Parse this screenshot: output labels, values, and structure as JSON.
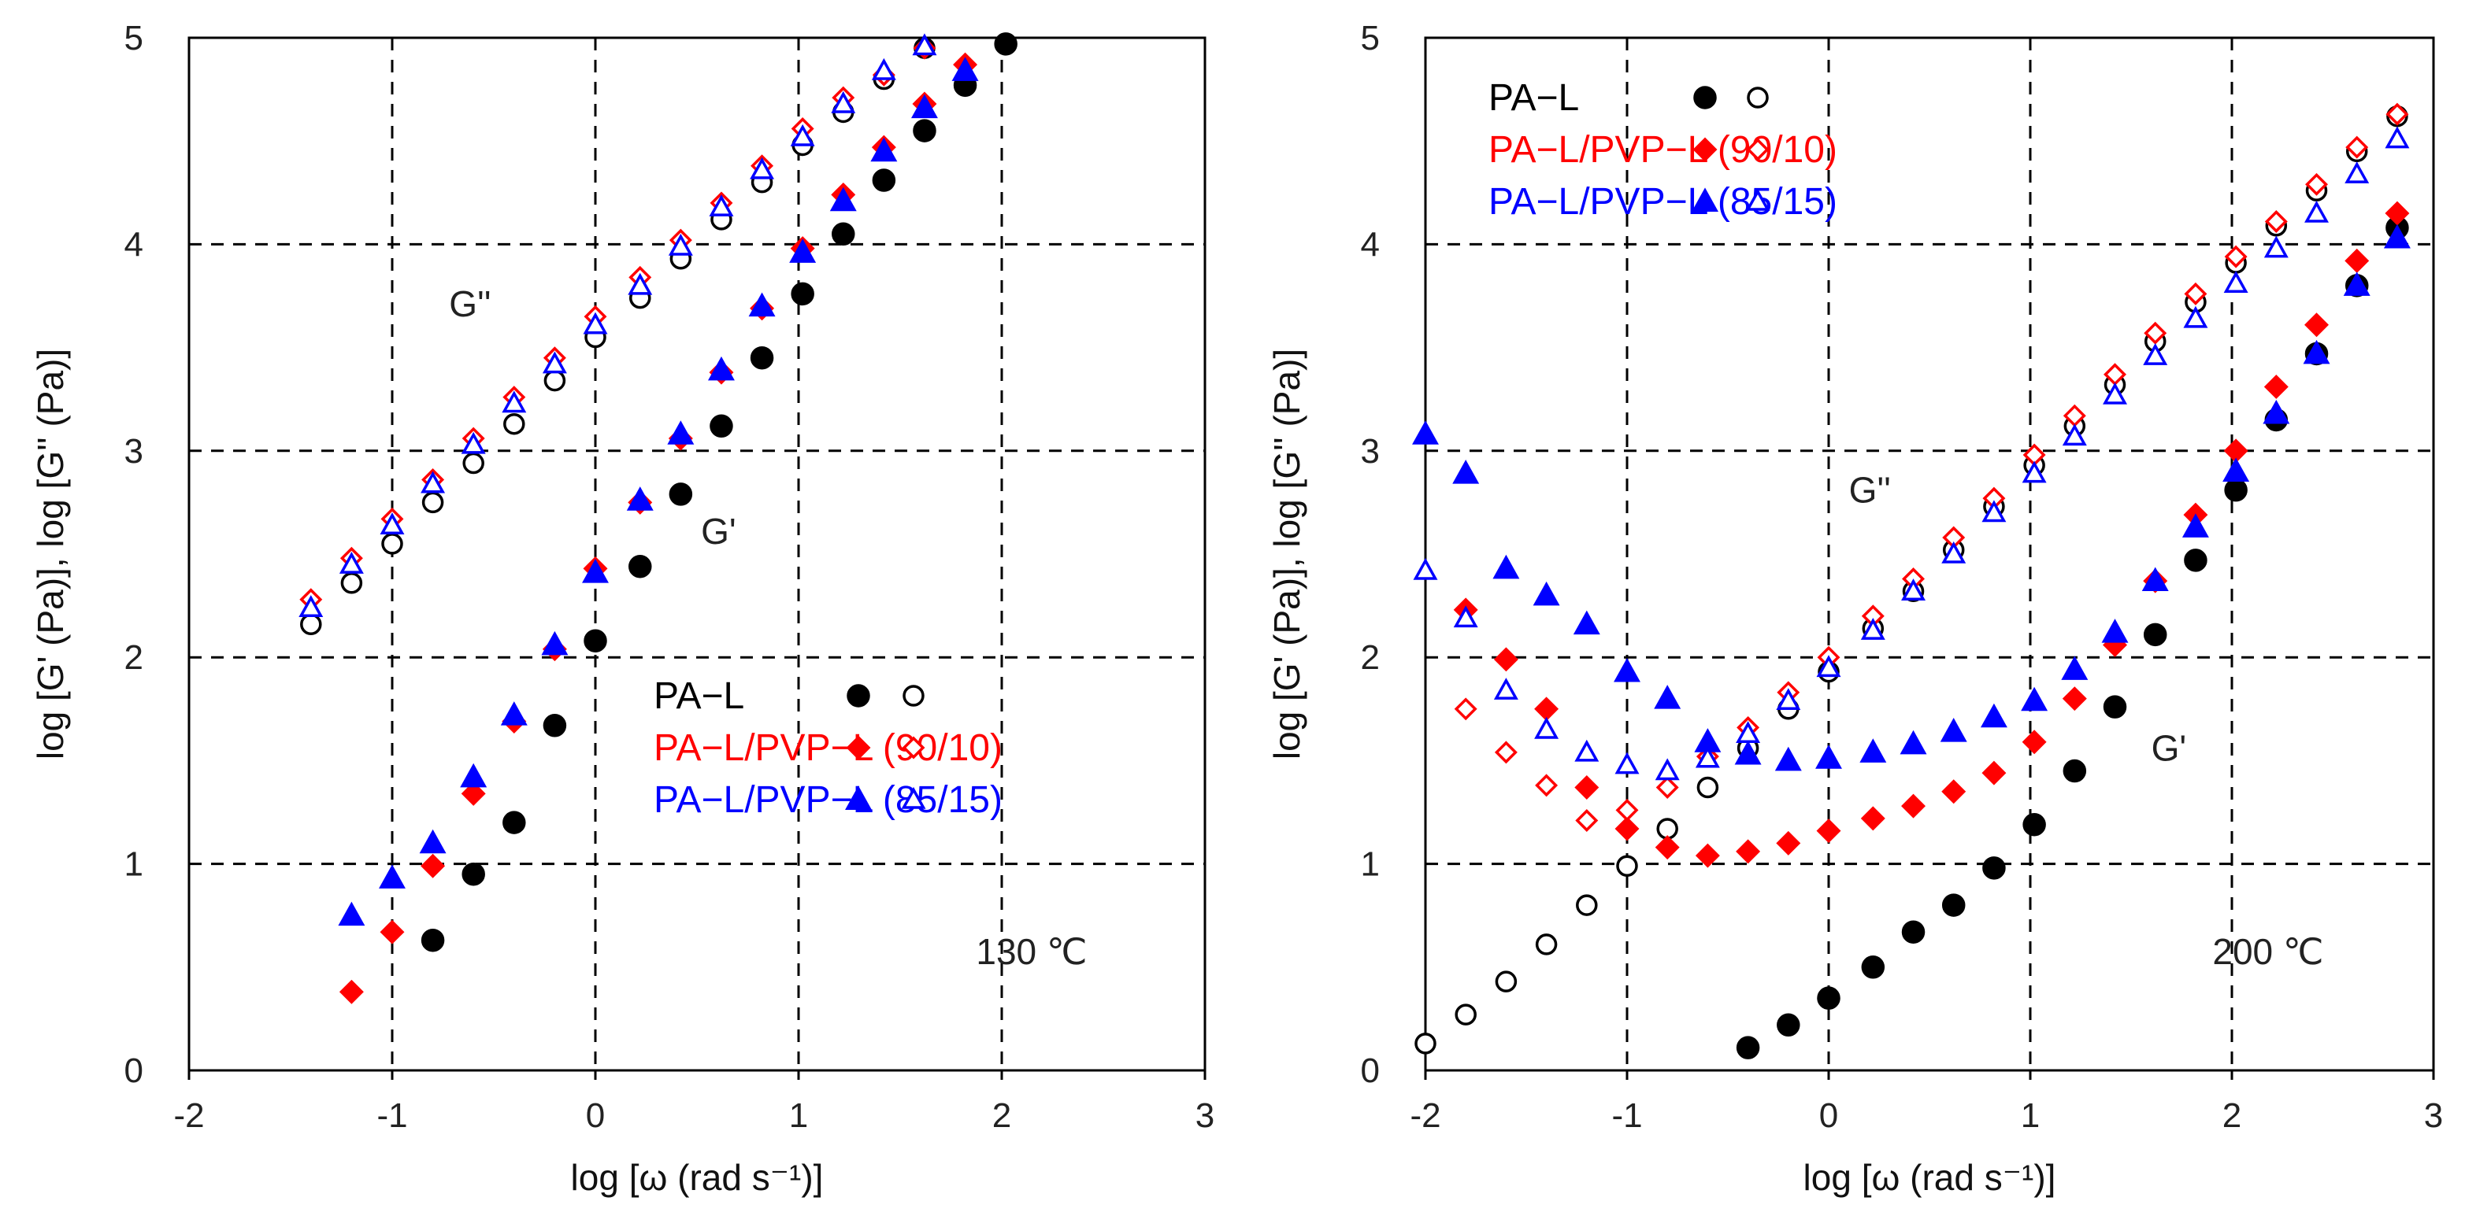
{
  "colors": {
    "pa_l": "#000000",
    "pvp_90_10": "#ff0000",
    "pvp_85_15": "#0000ff",
    "grid": "#000000",
    "axis": "#000000"
  },
  "chart_data": [
    {
      "type": "scatter",
      "panel": "left",
      "xlabel": "log [ω (rad s⁻¹)]",
      "ylabel": "log [G' (Pa)], log [G'' (Pa)]",
      "xlim": [
        -2,
        3
      ],
      "ylim": [
        0,
        5
      ],
      "x_ticks": [
        "-2",
        "-1",
        "0",
        "1",
        "2",
        "3"
      ],
      "y_ticks": [
        "0",
        "1",
        "2",
        "3",
        "4",
        "5"
      ],
      "temperature_label": "130 ℃",
      "annotations": [
        {
          "text": "G''",
          "x": -0.72,
          "y": 3.65
        },
        {
          "text": "G'",
          "x": 0.52,
          "y": 2.55
        }
      ],
      "legend": [
        {
          "label": "PA−L",
          "series": "pa_l"
        },
        {
          "label": "PA−L/PVP−L (90/10)",
          "series": "pvp_90_10"
        },
        {
          "label": "PA−L/PVP−L (85/15)",
          "series": "pvp_85_15"
        }
      ],
      "series": [
        {
          "id": "pa_l_Gp",
          "name": "PA−L G'",
          "color": "pa_l",
          "marker": "circle",
          "filled": true,
          "x": [
            -0.8,
            -0.6,
            -0.4,
            -0.2,
            0.0,
            0.22,
            0.42,
            0.62,
            0.82,
            1.02,
            1.22,
            1.42,
            1.62,
            1.82,
            2.02
          ],
          "y": [
            0.63,
            0.95,
            1.2,
            1.67,
            2.08,
            2.44,
            2.79,
            3.12,
            3.45,
            3.76,
            4.05,
            4.31,
            4.55,
            4.77,
            4.97
          ]
        },
        {
          "id": "pa_l_Gpp",
          "name": "PA−L G''",
          "color": "pa_l",
          "marker": "circle",
          "filled": false,
          "x": [
            -1.4,
            -1.2,
            -1.0,
            -0.8,
            -0.6,
            -0.4,
            -0.2,
            0.0,
            0.22,
            0.42,
            0.62,
            0.82,
            1.02,
            1.22,
            1.42,
            1.62
          ],
          "y": [
            2.16,
            2.36,
            2.55,
            2.75,
            2.94,
            3.13,
            3.34,
            3.55,
            3.74,
            3.93,
            4.12,
            4.3,
            4.48,
            4.64,
            4.8,
            4.95
          ]
        },
        {
          "id": "pvp_90_Gp",
          "name": "PA−L/PVP−L (90/10) G'",
          "color": "pvp_90_10",
          "marker": "diamond",
          "filled": true,
          "x": [
            -1.2,
            -1.0,
            -0.8,
            -0.6,
            -0.4,
            -0.2,
            0.0,
            0.22,
            0.42,
            0.62,
            0.82,
            1.02,
            1.22,
            1.42,
            1.62,
            1.82
          ],
          "y": [
            0.38,
            0.67,
            0.99,
            1.34,
            1.69,
            2.04,
            2.43,
            2.75,
            3.06,
            3.38,
            3.69,
            3.98,
            4.24,
            4.47,
            4.68,
            4.87
          ]
        },
        {
          "id": "pvp_90_Gpp",
          "name": "PA−L/PVP−L (90/10) G''",
          "color": "pvp_90_10",
          "marker": "diamond",
          "filled": false,
          "x": [
            -1.4,
            -1.2,
            -1.0,
            -0.8,
            -0.6,
            -0.4,
            -0.2,
            0.0,
            0.22,
            0.42,
            0.62,
            0.82,
            1.02,
            1.22,
            1.42,
            1.62
          ],
          "y": [
            2.28,
            2.48,
            2.67,
            2.86,
            3.06,
            3.26,
            3.45,
            3.65,
            3.84,
            4.02,
            4.2,
            4.38,
            4.56,
            4.71,
            4.82,
            4.95
          ]
        },
        {
          "id": "pvp_85_Gp",
          "name": "PA−L/PVP−L (85/15) G'",
          "color": "pvp_85_15",
          "marker": "triangle",
          "filled": true,
          "x": [
            -1.2,
            -1.0,
            -0.8,
            -0.6,
            -0.4,
            -0.2,
            0.0,
            0.22,
            0.42,
            0.62,
            0.82,
            1.02,
            1.22,
            1.42,
            1.62,
            1.82
          ],
          "y": [
            0.75,
            0.93,
            1.1,
            1.42,
            1.72,
            2.06,
            2.41,
            2.76,
            3.08,
            3.39,
            3.7,
            3.96,
            4.21,
            4.45,
            4.66,
            4.84
          ]
        },
        {
          "id": "pvp_85_Gpp",
          "name": "PA−L/PVP−L (85/15) G''",
          "color": "pvp_85_15",
          "marker": "triangle",
          "filled": false,
          "x": [
            -1.4,
            -1.2,
            -1.0,
            -0.8,
            -0.6,
            -0.4,
            -0.2,
            0.0,
            0.22,
            0.42,
            0.62,
            0.82,
            1.02,
            1.22,
            1.42,
            1.62
          ],
          "y": [
            2.24,
            2.45,
            2.64,
            2.84,
            3.03,
            3.23,
            3.42,
            3.61,
            3.8,
            3.99,
            4.18,
            4.36,
            4.52,
            4.68,
            4.84,
            4.96
          ]
        }
      ]
    },
    {
      "type": "scatter",
      "panel": "right",
      "xlabel": "log [ω (rad s⁻¹)]",
      "ylabel": "log [G' (Pa)], log [G'' (Pa)]",
      "xlim": [
        -2,
        3
      ],
      "ylim": [
        0,
        5
      ],
      "x_ticks": [
        "-2",
        "-1",
        "0",
        "1",
        "2",
        "3"
      ],
      "y_ticks": [
        "0",
        "1",
        "2",
        "3",
        "4",
        "5"
      ],
      "temperature_label": "200 ℃",
      "annotations": [
        {
          "text": "G''",
          "x": 0.1,
          "y": 2.75
        },
        {
          "text": "G'",
          "x": 1.6,
          "y": 1.5
        }
      ],
      "legend": [
        {
          "label": "PA−L",
          "series": "pa_l"
        },
        {
          "label": "PA−L/PVP−L (90/10)",
          "series": "pvp_90_10"
        },
        {
          "label": "PA−L/PVP−L (85/15)",
          "series": "pvp_85_15"
        }
      ],
      "series": [
        {
          "id": "pa_l_Gp",
          "name": "PA−L G'",
          "color": "pa_l",
          "marker": "circle",
          "filled": true,
          "x": [
            -0.4,
            -0.2,
            0.0,
            0.22,
            0.42,
            0.62,
            0.82,
            1.02,
            1.22,
            1.42,
            1.62,
            1.82,
            2.02,
            2.22,
            2.42,
            2.62,
            2.82
          ],
          "y": [
            0.11,
            0.22,
            0.35,
            0.5,
            0.67,
            0.8,
            0.98,
            1.19,
            1.45,
            1.76,
            2.11,
            2.47,
            2.81,
            3.15,
            3.47,
            3.8,
            4.08
          ]
        },
        {
          "id": "pa_l_Gpp",
          "name": "PA−L G''",
          "color": "pa_l",
          "marker": "circle",
          "filled": false,
          "x": [
            -2.0,
            -1.8,
            -1.6,
            -1.4,
            -1.2,
            -1.0,
            -0.8,
            -0.6,
            -0.4,
            -0.2,
            0.0,
            0.22,
            0.42,
            0.62,
            0.82,
            1.02,
            1.22,
            1.42,
            1.62,
            1.82,
            2.02,
            2.22,
            2.42,
            2.62,
            2.82
          ],
          "y": [
            0.13,
            0.27,
            0.43,
            0.61,
            0.8,
            0.99,
            1.17,
            1.37,
            1.56,
            1.75,
            1.93,
            2.14,
            2.32,
            2.52,
            2.73,
            2.93,
            3.12,
            3.32,
            3.53,
            3.72,
            3.91,
            4.09,
            4.26,
            4.45,
            4.62
          ]
        },
        {
          "id": "pvp_90_Gp",
          "name": "PA−L/PVP−L (90/10) G'",
          "color": "pvp_90_10",
          "marker": "diamond",
          "filled": true,
          "x": [
            -1.8,
            -1.6,
            -1.4,
            -1.2,
            -1.0,
            -0.8,
            -0.6,
            -0.4,
            -0.2,
            0.0,
            0.22,
            0.42,
            0.62,
            0.82,
            1.02,
            1.22,
            1.42,
            1.62,
            1.82,
            2.02,
            2.22,
            2.42,
            2.62,
            2.82
          ],
          "y": [
            2.23,
            1.99,
            1.75,
            1.37,
            1.17,
            1.08,
            1.04,
            1.06,
            1.1,
            1.16,
            1.22,
            1.28,
            1.35,
            1.44,
            1.59,
            1.8,
            2.06,
            2.37,
            2.69,
            3.0,
            3.31,
            3.61,
            3.92,
            4.15
          ]
        },
        {
          "id": "pvp_90_Gpp",
          "name": "PA−L/PVP−L (90/10) G''",
          "color": "pvp_90_10",
          "marker": "diamond",
          "filled": false,
          "x": [
            -1.8,
            -1.6,
            -1.4,
            -1.2,
            -1.0,
            -0.8,
            -0.6,
            -0.4,
            -0.2,
            0.0,
            0.22,
            0.42,
            0.62,
            0.82,
            1.02,
            1.22,
            1.42,
            1.62,
            1.82,
            2.02,
            2.22,
            2.42,
            2.62,
            2.82
          ],
          "y": [
            1.75,
            1.54,
            1.38,
            1.21,
            1.26,
            1.37,
            1.52,
            1.66,
            1.83,
            2.0,
            2.2,
            2.38,
            2.58,
            2.77,
            2.98,
            3.17,
            3.37,
            3.57,
            3.76,
            3.94,
            4.11,
            4.29,
            4.47,
            4.63
          ]
        },
        {
          "id": "pvp_85_Gp",
          "name": "PA−L/PVP−L (85/15) G'",
          "color": "pvp_85_15",
          "marker": "triangle",
          "filled": true,
          "x": [
            -2.0,
            -1.8,
            -1.6,
            -1.4,
            -1.2,
            -1.0,
            -0.8,
            -0.6,
            -0.4,
            -0.2,
            0.0,
            0.22,
            0.42,
            0.62,
            0.82,
            1.02,
            1.22,
            1.42,
            1.62,
            1.82,
            2.02,
            2.22,
            2.42,
            2.62,
            2.82
          ],
          "y": [
            3.08,
            2.89,
            2.43,
            2.3,
            2.16,
            1.93,
            1.8,
            1.59,
            1.53,
            1.5,
            1.51,
            1.54,
            1.58,
            1.64,
            1.71,
            1.79,
            1.94,
            2.12,
            2.37,
            2.63,
            2.9,
            3.18,
            3.47,
            3.8,
            4.03
          ]
        },
        {
          "id": "pvp_85_Gpp",
          "name": "PA−L/PVP−L (85/15) G''",
          "color": "pvp_85_15",
          "marker": "triangle",
          "filled": false,
          "x": [
            -2.0,
            -1.8,
            -1.6,
            -1.4,
            -1.2,
            -1.0,
            -0.8,
            -0.6,
            -0.4,
            -0.2,
            0.0,
            0.22,
            0.42,
            0.62,
            0.82,
            1.02,
            1.22,
            1.42,
            1.62,
            1.82,
            2.02,
            2.22,
            2.42,
            2.62,
            2.82
          ],
          "y": [
            2.42,
            2.19,
            1.84,
            1.65,
            1.54,
            1.48,
            1.45,
            1.51,
            1.63,
            1.79,
            1.95,
            2.13,
            2.32,
            2.5,
            2.7,
            2.89,
            3.07,
            3.27,
            3.46,
            3.64,
            3.81,
            3.98,
            4.15,
            4.34,
            4.51
          ]
        }
      ]
    }
  ]
}
